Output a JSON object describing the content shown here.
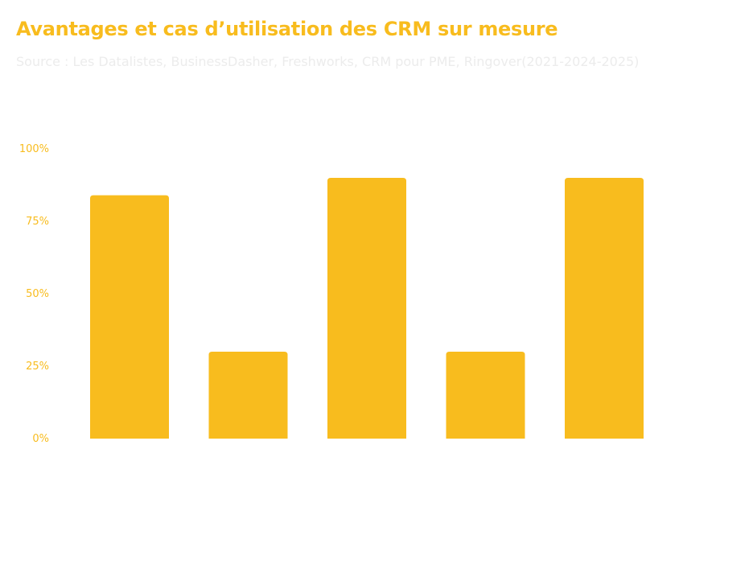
{
  "header": {
    "title": "Avantages et cas d’utilisation des CRM sur mesure",
    "subtitle": "Source : Les Datalistes, BusinessDasher, Freshworks, CRM pour PME, Ringover(2021-2024-2025)"
  },
  "colors": {
    "accent": "#F8BC1E",
    "subtitle": "#ECECEC",
    "background": "#FFFFFF"
  },
  "chart_data": {
    "type": "bar",
    "title": "Avantages et cas d’utilisation des CRM sur mesure",
    "xlabel": "",
    "ylabel": "",
    "ylim": [
      0,
      100
    ],
    "yticks": [
      0,
      25,
      50,
      75,
      100
    ],
    "ytick_labels": [
      "0%",
      "25%",
      "50%",
      "75%",
      "100%"
    ],
    "categories": [
      "",
      "",
      "",
      "",
      ""
    ],
    "values": [
      84,
      30,
      90,
      30,
      90
    ],
    "grid": false,
    "legend": "none"
  }
}
